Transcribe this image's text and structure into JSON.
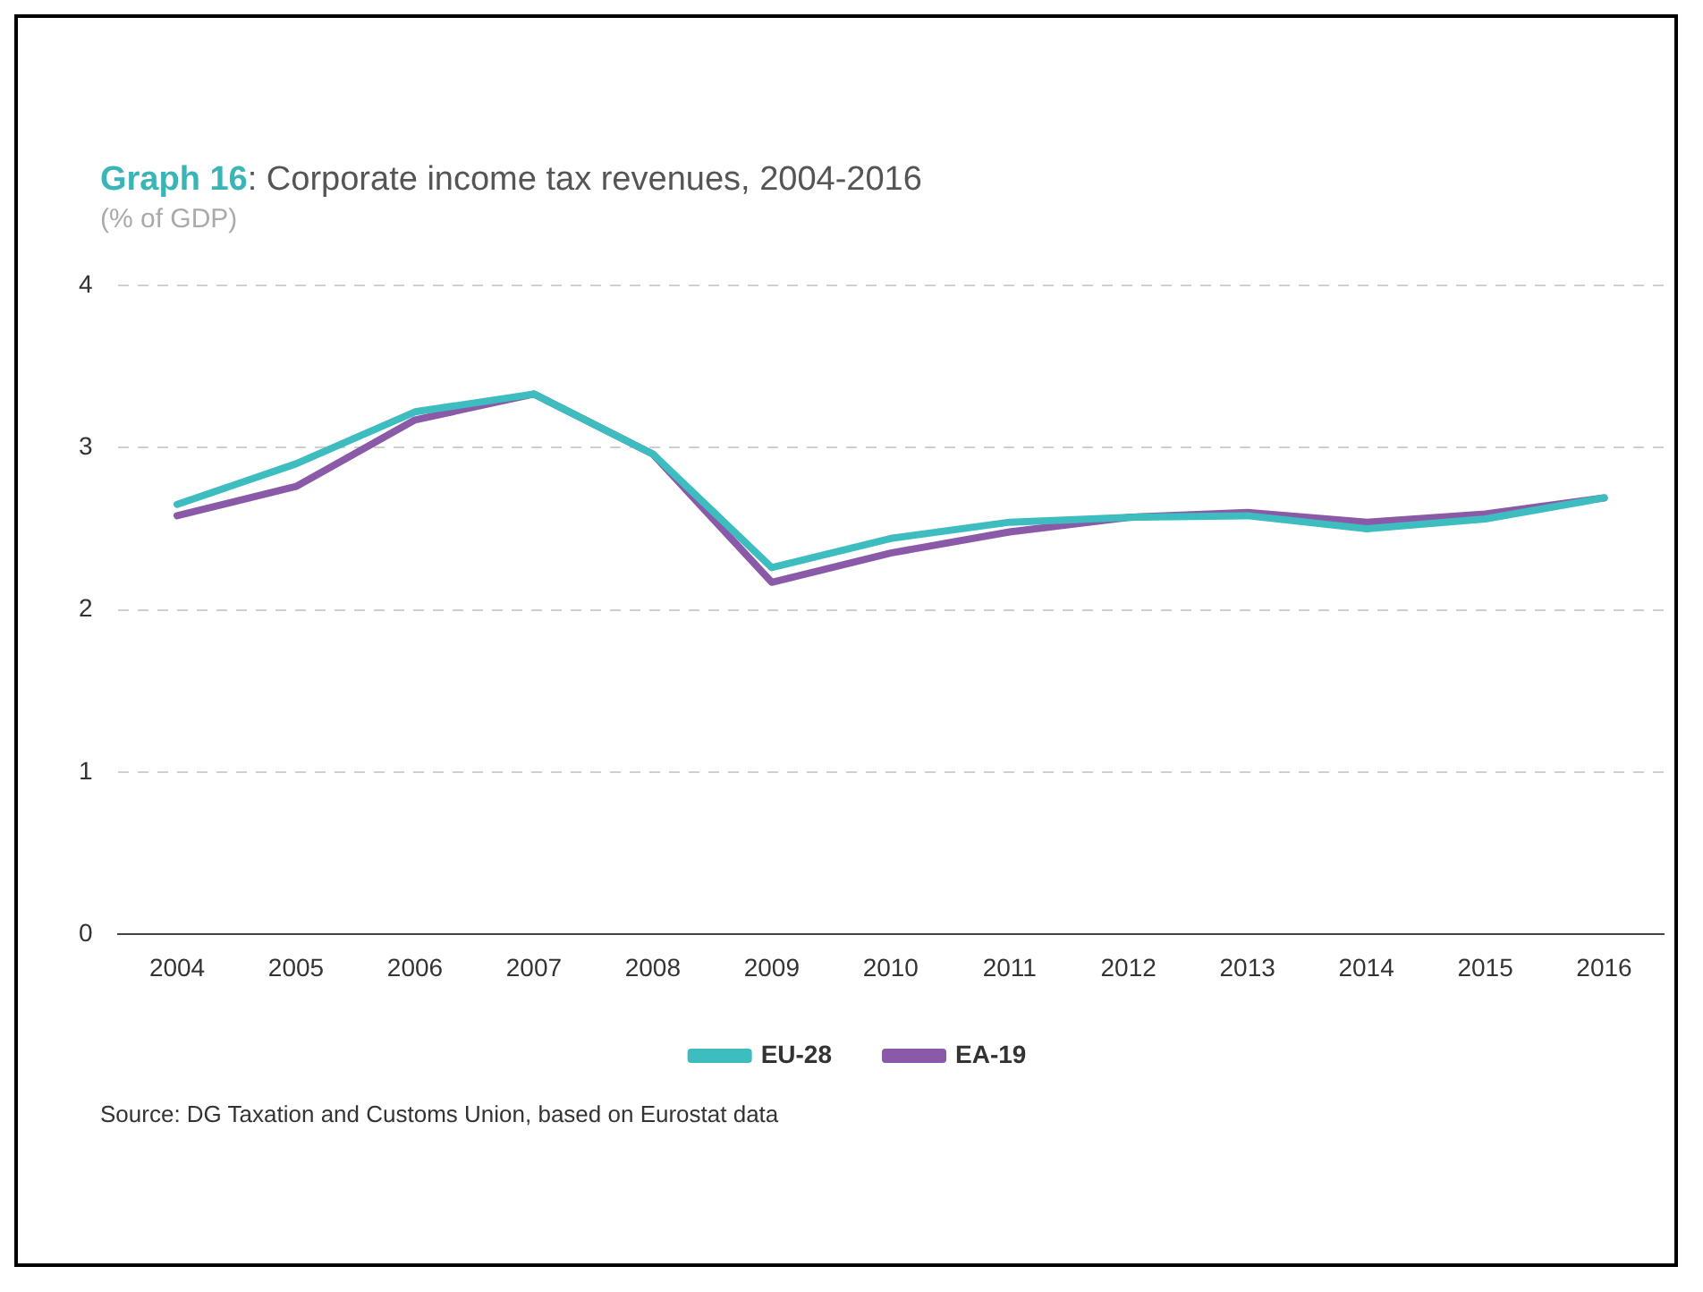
{
  "chart_data": {
    "type": "line",
    "title": "Graph 16: Corporate income tax revenues, 2004-2016",
    "subtitle": "(% of GDP)",
    "categories": [
      "2004",
      "2005",
      "2006",
      "2007",
      "2008",
      "2009",
      "2010",
      "2011",
      "2012",
      "2013",
      "2014",
      "2015",
      "2016"
    ],
    "series": [
      {
        "name": "EU-28",
        "color": "#3dbdbf",
        "values": [
          2.65,
          2.9,
          3.22,
          3.33,
          2.96,
          2.26,
          2.44,
          2.54,
          2.57,
          2.58,
          2.5,
          2.56,
          2.69
        ]
      },
      {
        "name": "EA-19",
        "color": "#8a5aa8",
        "values": [
          2.58,
          2.76,
          3.17,
          3.33,
          2.96,
          2.17,
          2.35,
          2.48,
          2.57,
          2.6,
          2.54,
          2.59,
          2.69
        ]
      }
    ],
    "ylim": [
      0,
      4
    ],
    "yticks": [
      0,
      1,
      2,
      3,
      4
    ],
    "grid": "y",
    "legend": "bottom",
    "marker": "none",
    "line_style": "solid",
    "annotations": [
      "Source: DG Taxation and Customs Union, based on Eurostat data"
    ]
  }
}
